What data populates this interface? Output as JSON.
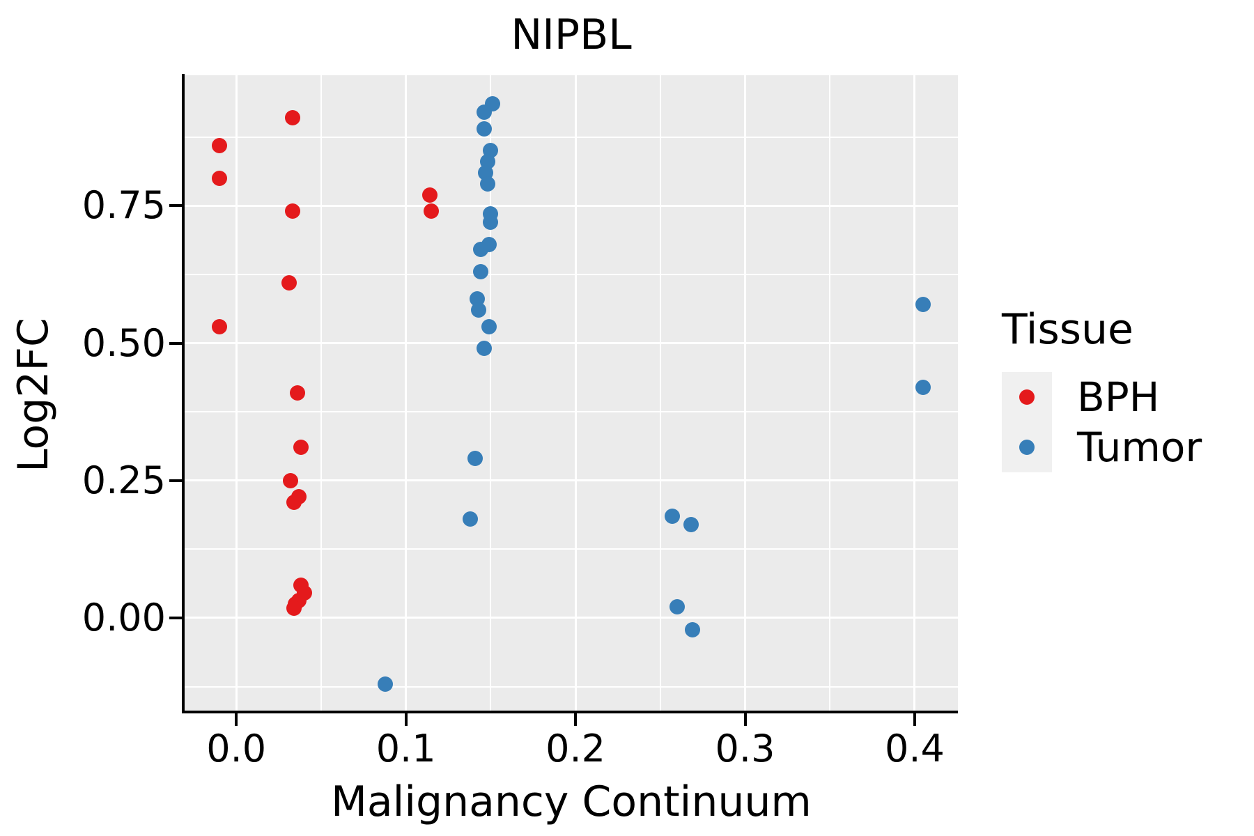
{
  "title": "NIPBL",
  "x_axis": {
    "label": "Malignancy Continuum",
    "tick_labels": [
      "0.0",
      "0.1",
      "0.2",
      "0.3",
      "0.4"
    ]
  },
  "y_axis": {
    "label": "Log2FC",
    "tick_labels": [
      "0.00",
      "0.25",
      "0.50",
      "0.75"
    ]
  },
  "legend": {
    "title": "Tissue",
    "entries": [
      {
        "label": "BPH",
        "color": "#E41A1C"
      },
      {
        "label": "Tumor",
        "color": "#377EB8"
      }
    ]
  },
  "colors": {
    "bph": "#E41A1C",
    "tumor": "#377EB8",
    "panel_background": "#EBEBEB",
    "gridline": "#FFFFFF",
    "axis": "#000000"
  },
  "chart_data": {
    "type": "scatter",
    "title": "NIPBL",
    "xlabel": "Malignancy Continuum",
    "ylabel": "Log2FC",
    "xlim": [
      -0.0305,
      0.4255
    ],
    "ylim": [
      -0.1686,
      0.9875
    ],
    "x_major_ticks": [
      0.0,
      0.1,
      0.2,
      0.3,
      0.4
    ],
    "x_tick_labels": [
      "0.0",
      "0.1",
      "0.2",
      "0.3",
      "0.4"
    ],
    "x_minor_ticks": [
      0.05,
      0.15,
      0.25,
      0.35
    ],
    "y_major_ticks": [
      0.0,
      0.25,
      0.5,
      0.75
    ],
    "y_tick_labels": [
      "0.00",
      "0.25",
      "0.50",
      "0.75"
    ],
    "y_minor_ticks": [
      -0.125,
      0.125,
      0.375,
      0.625,
      0.875
    ],
    "grid": true,
    "legend_position": "right",
    "legend_title": "Tissue",
    "series": [
      {
        "name": "BPH",
        "color": "#E41A1C",
        "points": [
          [
            -0.01,
            0.86
          ],
          [
            -0.01,
            0.8
          ],
          [
            -0.01,
            0.53
          ],
          [
            0.033,
            0.91
          ],
          [
            0.033,
            0.74
          ],
          [
            0.031,
            0.61
          ],
          [
            0.036,
            0.41
          ],
          [
            0.038,
            0.31
          ],
          [
            0.032,
            0.25
          ],
          [
            0.037,
            0.22
          ],
          [
            0.034,
            0.21
          ],
          [
            0.038,
            0.06
          ],
          [
            0.04,
            0.045
          ],
          [
            0.037,
            0.032
          ],
          [
            0.035,
            0.025
          ],
          [
            0.034,
            0.018
          ],
          [
            0.114,
            0.77
          ],
          [
            0.115,
            0.74
          ]
        ]
      },
      {
        "name": "Tumor",
        "color": "#377EB8",
        "points": [
          [
            0.151,
            0.935
          ],
          [
            0.146,
            0.92
          ],
          [
            0.146,
            0.89
          ],
          [
            0.15,
            0.85
          ],
          [
            0.148,
            0.83
          ],
          [
            0.147,
            0.81
          ],
          [
            0.148,
            0.79
          ],
          [
            0.15,
            0.735
          ],
          [
            0.15,
            0.72
          ],
          [
            0.149,
            0.68
          ],
          [
            0.144,
            0.67
          ],
          [
            0.144,
            0.63
          ],
          [
            0.142,
            0.58
          ],
          [
            0.143,
            0.56
          ],
          [
            0.149,
            0.53
          ],
          [
            0.146,
            0.49
          ],
          [
            0.141,
            0.29
          ],
          [
            0.138,
            0.18
          ],
          [
            0.088,
            -0.12
          ],
          [
            0.257,
            0.185
          ],
          [
            0.268,
            0.17
          ],
          [
            0.26,
            0.02
          ],
          [
            0.269,
            -0.022
          ],
          [
            0.405,
            0.57
          ],
          [
            0.405,
            0.42
          ]
        ]
      }
    ]
  }
}
